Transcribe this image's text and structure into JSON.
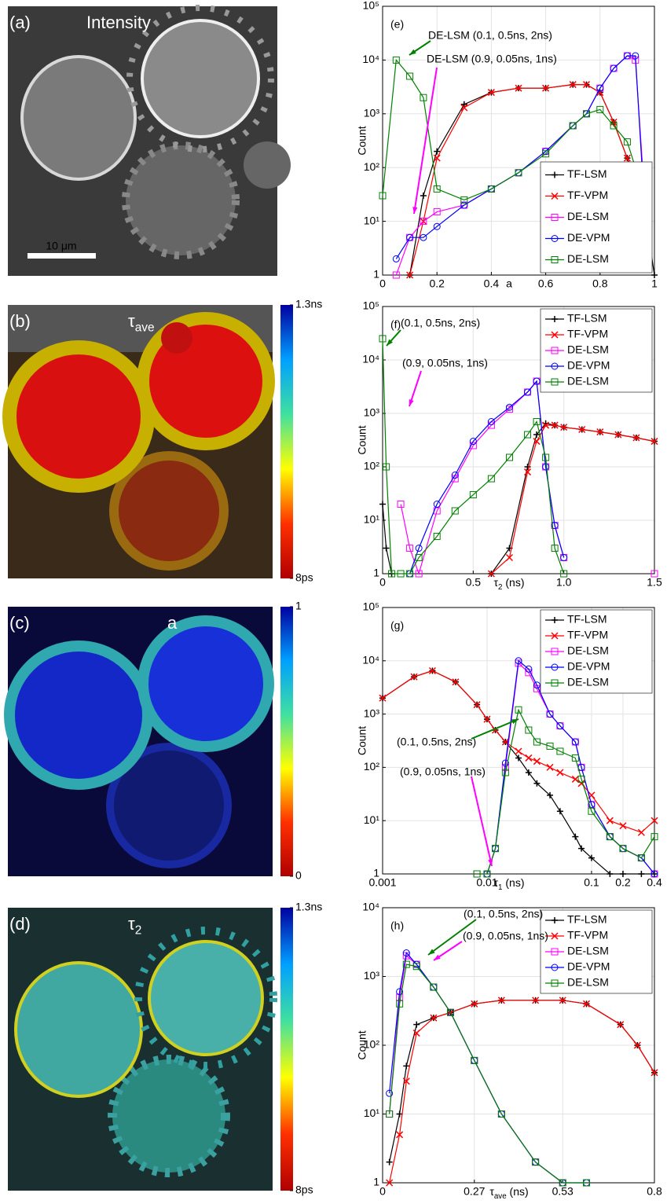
{
  "images": [
    {
      "panel_label": "(a)",
      "label": "Intensity",
      "scale_bar": "10 μm"
    },
    {
      "panel_label": "(b)",
      "label": {
        "symbol": "τ",
        "subscript": "ave"
      },
      "colorbar": {
        "ticks": [
          {
            "value": 1.3,
            "label": "1.3ns"
          },
          {
            "value": 0.008,
            "label": "8ps"
          }
        ]
      }
    },
    {
      "panel_label": "(c)",
      "label": "a",
      "colorbar": {
        "ticks": [
          1,
          0
        ]
      }
    },
    {
      "panel_label": "(d)",
      "label": {
        "symbol": "τ",
        "subscript": "2"
      },
      "colorbar": {
        "ticks": [
          {
            "value": 1.3,
            "label": "1.3ns"
          },
          {
            "value": 0.008,
            "label": "8ps"
          }
        ]
      }
    }
  ],
  "chart_data": [
    {
      "type": "line",
      "panel_label": "(e)",
      "xlabel": "a",
      "ylabel": "Count",
      "ylog": true,
      "grid": true,
      "legend": "lower right",
      "xlim": [
        0,
        1
      ],
      "xticks": [
        0,
        0.2,
        0.4,
        0.6,
        0.8,
        1
      ],
      "ylim": [
        1,
        100000
      ],
      "yticks": [
        1,
        {
          "value": 10,
          "label": "10¹"
        },
        {
          "value": 100,
          "label": "10²"
        },
        {
          "value": 1000,
          "label": "10³"
        },
        {
          "value": 10000,
          "label": "10⁴"
        },
        {
          "value": 100000,
          "label": "10⁵"
        }
      ],
      "x": [
        0,
        0.05,
        0.1,
        0.15,
        0.2,
        0.3,
        0.4,
        0.5,
        0.6,
        0.7,
        0.75,
        0.8,
        0.85,
        0.9,
        0.93,
        0.97,
        1
      ],
      "series": [
        {
          "name": "TF-LSM",
          "color": "#000000",
          "marker": "plus",
          "values": [
            null,
            null,
            1,
            30,
            200,
            1500,
            2500,
            3000,
            3000,
            3500,
            3500,
            2500,
            700,
            150,
            60,
            10,
            1
          ]
        },
        {
          "name": "TF-VPM",
          "color": "#ff0000",
          "marker": "x",
          "values": [
            null,
            null,
            1,
            10,
            150,
            1300,
            2500,
            3000,
            3000,
            3500,
            3500,
            2500,
            700,
            150,
            50,
            30,
            null
          ]
        },
        {
          "name": "DE-LSM",
          "color": "#ff00ff",
          "marker": "square",
          "values": [
            null,
            1,
            5,
            10,
            15,
            20,
            40,
            80,
            200,
            600,
            1000,
            3000,
            7000,
            12000,
            10000,
            10,
            null
          ]
        },
        {
          "name": "DE-VPM",
          "color": "#0000ff",
          "marker": "circle",
          "values": [
            null,
            2,
            5,
            5,
            8,
            20,
            40,
            80,
            200,
            600,
            1000,
            3000,
            7000,
            12000,
            12000,
            5,
            null
          ]
        },
        {
          "name": "DE-LSM",
          "color": "#008000",
          "marker": "square",
          "values": [
            30,
            10000,
            5000,
            2000,
            40,
            25,
            40,
            80,
            180,
            600,
            1000,
            1200,
            600,
            300,
            100,
            3,
            null
          ]
        }
      ],
      "annotations": [
        {
          "text": "DE-LSM (0.1, 0.5ns, 2ns)",
          "color": "#008000"
        },
        {
          "text": "DE-LSM (0.9, 0.05ns, 1ns)",
          "color": "#ff00ff"
        }
      ]
    },
    {
      "type": "line",
      "panel_label": "(f)",
      "xlabel": {
        "symbol": "τ",
        "subscript": "2",
        "unit": " (ns)"
      },
      "ylabel": "Count",
      "ylog": true,
      "grid": true,
      "legend": "upper right",
      "xlim": [
        0,
        1.5
      ],
      "xticks": [
        0,
        0.5,
        {
          "value": 1,
          "label": "1.0"
        },
        1.5
      ],
      "ylim": [
        1,
        100000
      ],
      "yticks": [
        1,
        {
          "value": 10,
          "label": "10¹"
        },
        {
          "value": 100,
          "label": "10²"
        },
        {
          "value": 1000,
          "label": "10³"
        },
        {
          "value": 10000,
          "label": "10⁴"
        },
        {
          "value": 100000,
          "label": "10⁵"
        }
      ],
      "x": [
        0,
        0.02,
        0.05,
        0.1,
        0.15,
        0.2,
        0.3,
        0.4,
        0.5,
        0.6,
        0.7,
        0.8,
        0.85,
        0.9,
        0.95,
        1.0,
        1.1,
        1.2,
        1.3,
        1.4,
        1.5
      ],
      "series": [
        {
          "name": "TF-LSM",
          "color": "#000000",
          "marker": "plus",
          "values": [
            20,
            3,
            1,
            null,
            null,
            null,
            null,
            null,
            null,
            1,
            3,
            100,
            400,
            650,
            600,
            550,
            500,
            450,
            400,
            350,
            300
          ]
        },
        {
          "name": "TF-VPM",
          "color": "#ff0000",
          "marker": "x",
          "values": [
            null,
            null,
            null,
            null,
            null,
            null,
            null,
            null,
            null,
            1,
            2,
            80,
            300,
            600,
            600,
            550,
            500,
            450,
            400,
            350,
            300
          ]
        },
        {
          "name": "DE-LSM",
          "color": "#ff00ff",
          "marker": "square",
          "values": [
            null,
            null,
            null,
            20,
            3,
            1,
            15,
            60,
            250,
            600,
            1200,
            2500,
            4000,
            100,
            8,
            2,
            null,
            null,
            null,
            null,
            1
          ]
        },
        {
          "name": "DE-VPM",
          "color": "#0000ff",
          "marker": "circle",
          "values": [
            null,
            null,
            null,
            null,
            1,
            3,
            20,
            70,
            300,
            700,
            1300,
            2500,
            4000,
            100,
            8,
            2,
            null,
            null,
            null,
            null,
            null
          ]
        },
        {
          "name": "DE-LSM",
          "color": "#008000",
          "marker": "square",
          "values": [
            25000,
            100,
            1,
            1,
            1,
            2,
            5,
            15,
            30,
            60,
            150,
            400,
            700,
            150,
            3,
            1,
            null,
            null,
            null,
            null,
            null
          ]
        }
      ],
      "annotations": [
        {
          "text": "(0.1, 0.5ns, 2ns)",
          "color": "#008000"
        },
        {
          "text": "(0.9, 0.05ns, 1ns)",
          "color": "#ff00ff"
        }
      ]
    },
    {
      "type": "line",
      "panel_label": "(g)",
      "xlabel": {
        "symbol": "τ",
        "subscript": "1",
        "unit": " (ns)"
      },
      "ylabel": "Count",
      "xlog": true,
      "ylog": true,
      "grid": true,
      "legend": "upper right",
      "xlim": [
        0.001,
        0.4
      ],
      "xticks": [
        0.001,
        0.01,
        0.1,
        0.2,
        0.4
      ],
      "ylim": [
        1,
        100000
      ],
      "yticks": [
        1,
        {
          "value": 10,
          "label": "10¹"
        },
        {
          "value": 100,
          "label": "10²"
        },
        {
          "value": 1000,
          "label": "10³"
        },
        {
          "value": 10000,
          "label": "10⁴"
        },
        {
          "value": 100000,
          "label": "10⁵"
        }
      ],
      "x": [
        0.001,
        0.002,
        0.003,
        0.005,
        0.008,
        0.01,
        0.012,
        0.015,
        0.02,
        0.025,
        0.03,
        0.04,
        0.05,
        0.07,
        0.08,
        0.1,
        0.15,
        0.2,
        0.3,
        0.4
      ],
      "series": [
        {
          "name": "TF-LSM",
          "color": "#000000",
          "marker": "plus",
          "values": [
            2000,
            5000,
            6500,
            4000,
            1500,
            800,
            500,
            300,
            150,
            80,
            50,
            30,
            15,
            5,
            3,
            2,
            1,
            1,
            1,
            1
          ]
        },
        {
          "name": "TF-VPM",
          "color": "#ff0000",
          "marker": "x",
          "values": [
            2000,
            5000,
            6500,
            4000,
            1500,
            800,
            500,
            300,
            200,
            150,
            130,
            100,
            80,
            60,
            50,
            30,
            10,
            8,
            6,
            10
          ]
        },
        {
          "name": "DE-LSM",
          "color": "#ff00ff",
          "marker": "square",
          "values": [
            null,
            null,
            null,
            null,
            1,
            1,
            3,
            100,
            9000,
            6000,
            3000,
            1000,
            600,
            300,
            100,
            20,
            5,
            3,
            2,
            1
          ]
        },
        {
          "name": "DE-VPM",
          "color": "#0000ff",
          "marker": "circle",
          "values": [
            null,
            null,
            null,
            null,
            null,
            1,
            3,
            120,
            10000,
            7000,
            3500,
            1000,
            600,
            300,
            100,
            20,
            5,
            3,
            2,
            1
          ]
        },
        {
          "name": "DE-LSM",
          "color": "#008000",
          "marker": "square",
          "values": [
            null,
            null,
            null,
            null,
            1,
            1,
            3,
            80,
            1200,
            500,
            300,
            250,
            200,
            150,
            60,
            15,
            5,
            3,
            2,
            5
          ]
        }
      ],
      "annotations": [
        {
          "text": "(0.1, 0.5ns, 2ns)",
          "color": "#008000"
        },
        {
          "text": "(0.9, 0.05ns, 1ns)",
          "color": "#ff00ff"
        }
      ]
    },
    {
      "type": "line",
      "panel_label": "(h)",
      "xlabel": {
        "symbol": "τ",
        "subscript": "ave",
        "unit": " (ns)"
      },
      "ylabel": "Count",
      "ylog": true,
      "grid": true,
      "legend": "upper right",
      "xlim": [
        0,
        0.8
      ],
      "xticks": [
        0,
        0.27,
        0.53,
        0.8
      ],
      "ylim": [
        1,
        10000
      ],
      "yticks": [
        1,
        {
          "value": 10,
          "label": "10¹"
        },
        {
          "value": 100,
          "label": "10²"
        },
        {
          "value": 1000,
          "label": "10³"
        },
        {
          "value": 10000,
          "label": "10⁴"
        }
      ],
      "x": [
        0,
        0.02,
        0.05,
        0.07,
        0.1,
        0.15,
        0.2,
        0.27,
        0.35,
        0.45,
        0.53,
        0.6,
        0.7,
        0.75,
        0.8
      ],
      "series": [
        {
          "name": "TF-LSM",
          "color": "#000000",
          "marker": "plus",
          "values": [
            null,
            2,
            10,
            50,
            200,
            250,
            300,
            400,
            450,
            450,
            450,
            400,
            200,
            100,
            40
          ]
        },
        {
          "name": "TF-VPM",
          "color": "#ff0000",
          "marker": "x",
          "values": [
            null,
            1,
            5,
            30,
            150,
            250,
            300,
            400,
            450,
            450,
            450,
            400,
            200,
            100,
            40
          ]
        },
        {
          "name": "DE-LSM",
          "color": "#ff00ff",
          "marker": "square",
          "values": [
            null,
            10,
            500,
            2000,
            1500,
            700,
            300,
            60,
            10,
            2,
            1,
            null,
            null,
            null,
            null
          ]
        },
        {
          "name": "DE-VPM",
          "color": "#0000ff",
          "marker": "circle",
          "values": [
            null,
            20,
            600,
            2200,
            1500,
            700,
            300,
            60,
            10,
            2,
            1,
            1,
            null,
            null,
            null
          ]
        },
        {
          "name": "DE-LSM",
          "color": "#008000",
          "marker": "square",
          "values": [
            null,
            10,
            400,
            1500,
            1400,
            700,
            300,
            60,
            10,
            2,
            1,
            1,
            null,
            null,
            null
          ]
        }
      ],
      "annotations": [
        {
          "text": "(0.1, 0.5ns, 2ns)",
          "color": "#008000"
        },
        {
          "text": "(0.9, 0.05ns, 1ns)",
          "color": "#ff00ff"
        }
      ]
    }
  ]
}
